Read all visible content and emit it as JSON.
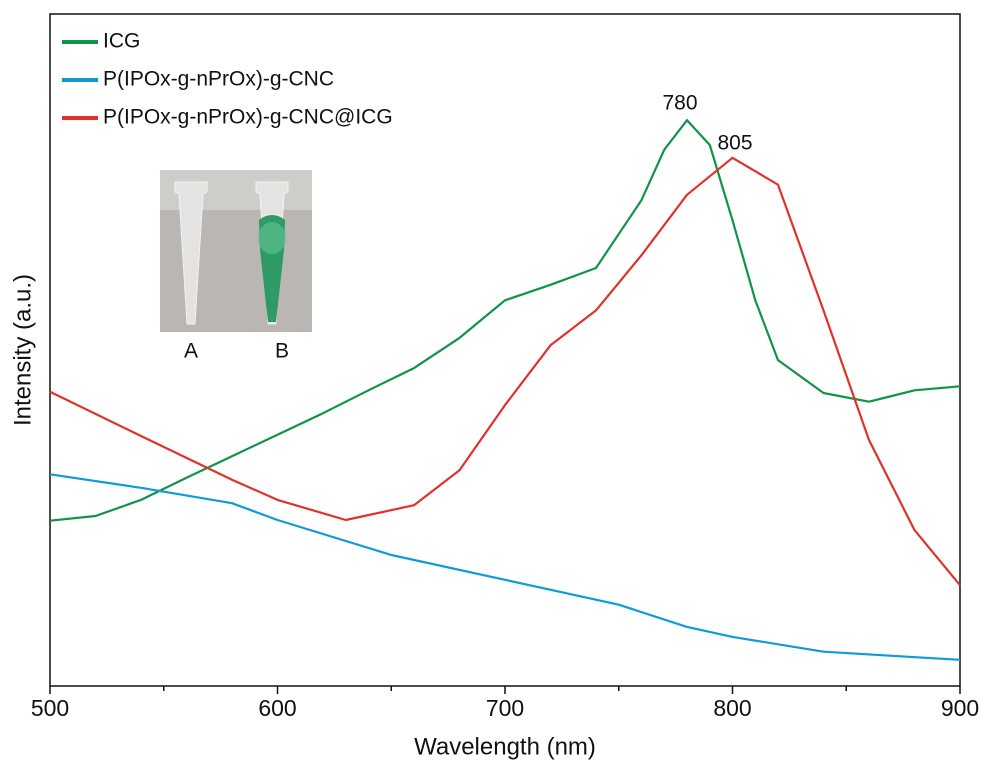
{
  "chart_data": {
    "type": "line",
    "x_label": "Wavelength (nm)",
    "y_label": "Intensity (a.u.)",
    "xlim": [
      500,
      900
    ],
    "ylim": [
      0,
      100
    ],
    "xticks": [
      500,
      600,
      700,
      800,
      900
    ],
    "xminorticks": [
      550,
      650,
      750,
      850
    ],
    "legend": "upper left",
    "annotations": [
      "780",
      "805"
    ],
    "inset_labels": [
      "A",
      "B"
    ],
    "series": [
      {
        "name": "ICG",
        "color": "#109447",
        "x": [
          500,
          520,
          540,
          560,
          580,
          600,
          620,
          640,
          660,
          680,
          700,
          720,
          740,
          760,
          770,
          780,
          790,
          800,
          810,
          820,
          840,
          860,
          880,
          900
        ],
        "values": [
          24.6,
          25.3,
          27.7,
          31.0,
          34.2,
          37.4,
          40.6,
          44.0,
          47.3,
          51.8,
          57.4,
          59.7,
          62.2,
          72.3,
          79.8,
          84.2,
          80.5,
          69.3,
          57.4,
          48.5,
          43.6,
          42.3,
          44.0,
          44.6
        ]
      },
      {
        "name": "P(IPOx-g-nPrOx)-g-CNC",
        "color": "#0f9bd7",
        "x": [
          500,
          540,
          580,
          600,
          650,
          700,
          750,
          780,
          800,
          840,
          870,
          900
        ],
        "values": [
          31.5,
          29.5,
          27.2,
          24.7,
          19.5,
          15.8,
          12.1,
          8.8,
          7.3,
          5.1,
          4.5,
          3.9
        ]
      },
      {
        "name": "P(IPOx-g-nPrOx)-g-CNC@ICG",
        "color": "#e2312b",
        "x": [
          500,
          540,
          580,
          600,
          630,
          660,
          680,
          700,
          720,
          740,
          760,
          780,
          800,
          820,
          840,
          860,
          880,
          900
        ],
        "values": [
          43.8,
          37.2,
          30.7,
          27.7,
          24.7,
          26.9,
          32.1,
          41.8,
          50.7,
          55.9,
          64.1,
          73.1,
          78.6,
          74.6,
          55.9,
          36.6,
          23.2,
          15.0
        ]
      }
    ]
  }
}
